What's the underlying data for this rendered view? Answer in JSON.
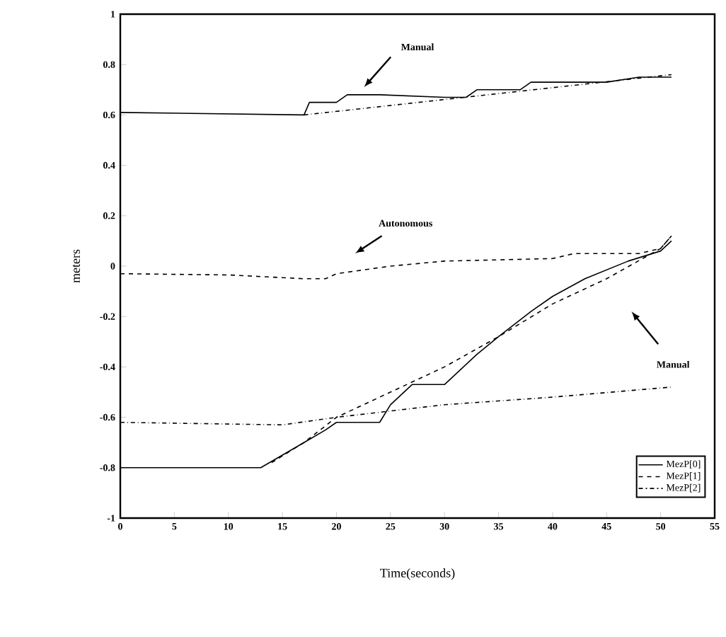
{
  "chart_data": {
    "type": "line",
    "xlabel": "Time(seconds)",
    "ylabel": "meters",
    "xlim": [
      0,
      55
    ],
    "ylim": [
      -1,
      1
    ],
    "xticks": [
      0,
      5,
      10,
      15,
      20,
      25,
      30,
      35,
      40,
      45,
      50,
      55
    ],
    "yticks": [
      -1,
      -0.8,
      -0.6,
      -0.4,
      -0.2,
      0,
      0.2,
      0.4,
      0.6,
      0.8,
      1
    ],
    "legend": "bottom right",
    "grid": false,
    "marker": "none",
    "series": [
      {
        "name": "MezP[0]",
        "color": "#000000",
        "line_style": "solid",
        "x": [
          0,
          17,
          17.5,
          20,
          21,
          24,
          30,
          32,
          33,
          37,
          38,
          45,
          48,
          51
        ],
        "values": [
          0.61,
          0.6,
          0.65,
          0.65,
          0.68,
          0.68,
          0.67,
          0.67,
          0.7,
          0.7,
          0.73,
          0.73,
          0.75,
          0.75
        ]
      },
      {
        "name": "MezP[1]",
        "color": "#000000",
        "line_style": "dashed",
        "x": [
          0,
          10,
          17,
          19,
          20,
          25,
          30,
          40,
          42,
          48,
          50,
          51
        ],
        "values": [
          -0.03,
          -0.035,
          -0.05,
          -0.05,
          -0.03,
          0.0,
          0.02,
          0.03,
          0.05,
          0.05,
          0.07,
          0.12
        ]
      },
      {
        "name": "MezP[2]",
        "color": "#000000",
        "line_style": "dashdot",
        "x": [
          17,
          51
        ],
        "values": [
          0.6,
          0.76
        ]
      },
      {
        "color": "#000000",
        "line_style": "solid",
        "x": [
          0,
          13,
          15,
          17,
          19,
          20,
          24,
          25,
          27,
          30,
          33,
          35,
          38,
          40,
          43,
          47,
          50,
          51
        ],
        "values": [
          -0.8,
          -0.8,
          -0.75,
          -0.7,
          -0.65,
          -0.62,
          -0.62,
          -0.55,
          -0.47,
          -0.47,
          -0.35,
          -0.28,
          -0.18,
          -0.12,
          -0.05,
          0.02,
          0.06,
          0.1
        ]
      },
      {
        "color": "#000000",
        "line_style": "dashed",
        "x": [
          14,
          17,
          20,
          25,
          30,
          35,
          40,
          45,
          50,
          51
        ],
        "values": [
          -0.78,
          -0.7,
          -0.6,
          -0.5,
          -0.4,
          -0.28,
          -0.15,
          -0.05,
          0.07,
          0.12
        ]
      },
      {
        "color": "#000000",
        "line_style": "dashdot",
        "x": [
          0,
          15,
          20,
          30,
          40,
          51
        ],
        "values": [
          -0.62,
          -0.63,
          -0.6,
          -0.55,
          -0.52,
          -0.48
        ]
      }
    ],
    "annotations": [
      "Manual",
      "Autonomous",
      "Manual"
    ]
  }
}
